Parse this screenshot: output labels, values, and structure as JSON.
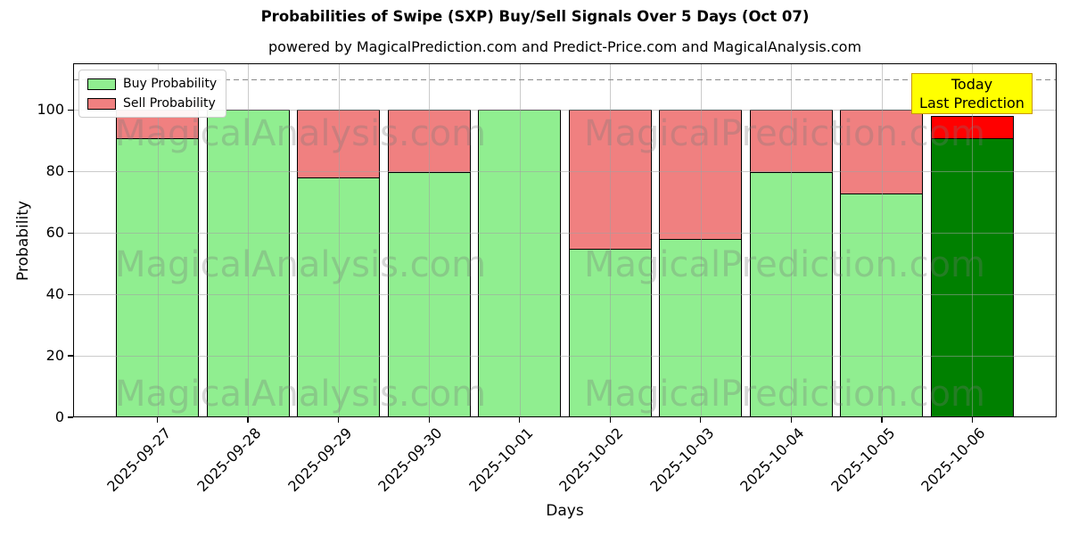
{
  "title": "Probabilities of Swipe (SXP) Buy/Sell Signals Over 5 Days (Oct 07)",
  "subtitle": "powered by MagicalPrediction.com and Predict-Price.com and MagicalAnalysis.com",
  "axes": {
    "ylabel": "Probability",
    "xlabel": "Days",
    "yticks": [
      0,
      20,
      40,
      60,
      80,
      100
    ],
    "dashed_line_y": 110
  },
  "legend": [
    {
      "label": "Buy Probability",
      "color": "#90ee90"
    },
    {
      "label": "Sell Probability",
      "color": "#f08080"
    }
  ],
  "annotation": {
    "line1": "Today",
    "line2": "Last Prediction"
  },
  "watermarks": {
    "left": "MagicalAnalysis.com",
    "right": "MagicalPrediction.com"
  },
  "chart_data": {
    "type": "bar",
    "stacked": true,
    "title": "Probabilities of Swipe (SXP) Buy/Sell Signals Over 5 Days (Oct 07)",
    "xlabel": "Days",
    "ylabel": "Probability",
    "ylim": [
      0,
      115.2
    ],
    "ymax_units": 115.2,
    "grid": true,
    "legend_position": "upper left",
    "categories": [
      "2025-09-27",
      "2025-09-28",
      "2025-09-29",
      "2025-09-30",
      "2025-10-01",
      "2025-10-02",
      "2025-10-03",
      "2025-10-04",
      "2025-10-05",
      "2025-10-06"
    ],
    "series": [
      {
        "name": "Buy Probability",
        "color": "#90ee90",
        "values": [
          91,
          100,
          78,
          80,
          100,
          55,
          58,
          80,
          73,
          91
        ]
      },
      {
        "name": "Sell Probability",
        "color": "#f08080",
        "values": [
          9,
          0,
          22,
          20,
          0,
          45,
          42,
          20,
          27,
          7
        ]
      }
    ],
    "highlight": {
      "index": 9,
      "buy_color": "#008000",
      "sell_color": "#ff0000",
      "note": "Today / Last Prediction"
    },
    "threshold_line": {
      "y": 110,
      "style": "dashed",
      "color": "#8a8a8a"
    }
  }
}
